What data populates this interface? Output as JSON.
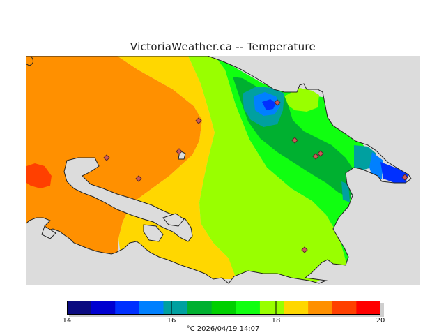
{
  "title": "VictoriaWeather.ca -- Temperature",
  "colors": {
    "background_sea": "#dcdcdc",
    "coast": "#222222",
    "station": "#cc5a5a"
  },
  "legend": {
    "bands": [
      "#0a0a80",
      "#0000d0",
      "#0030ff",
      "#0080ff",
      "#00a0a0",
      "#00b030",
      "#00d000",
      "#10ff10",
      "#99ff00",
      "#ffd700",
      "#ff9000",
      "#ff4000",
      "#ff0000"
    ],
    "tick_labels": [
      "14",
      "16",
      "18",
      "20"
    ],
    "caption": "°C  2026/04/19 14:07"
  }
}
